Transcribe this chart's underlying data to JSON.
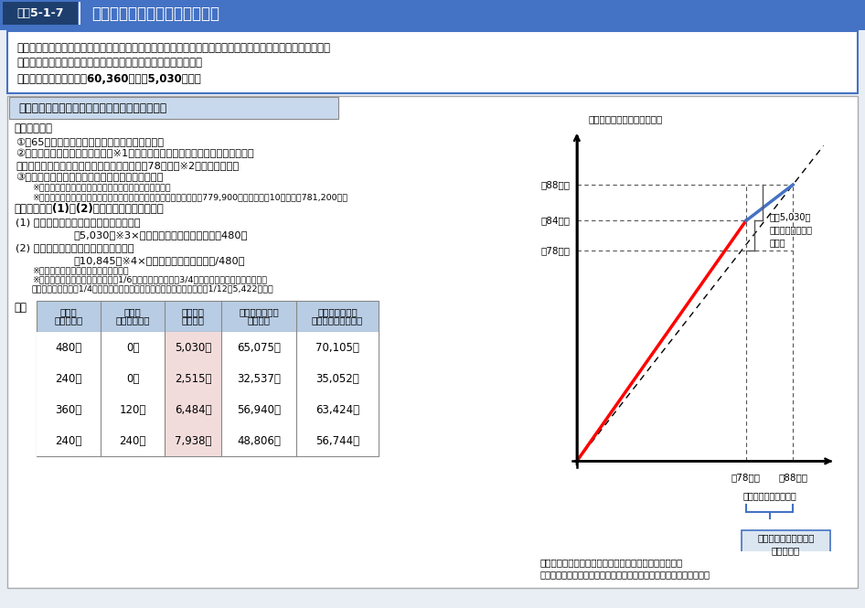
{
  "title_box_color": "#3a6ea5",
  "title_label": "図表5-1-7",
  "title_text": "年金生活者支援給付金について",
  "bg_color": "#e8eef4",
  "main_bg": "#ffffff",
  "header_blue": "#4472c4",
  "light_blue_bg": "#dce6f1",
  "subtitle_bg": "#c9d9ed",
  "table_header_bg": "#b8cce4",
  "table_pink": "#f2dcdb",
  "table_line_color": "#aaaaaa",
  "description_text_lines": [
    "年金生活者支援給付金は、年金を含めても所得が低い者（前年の所得額が老齢基礎年金満額以下の者など）の",
    "生活を支援するために、年金に上乗せして支給するものである。",
    "【令和３年度基準額　年60,360円（月5,030円）】"
  ],
  "section_title": "高齢者への給付金（老齢年金生活者支援給付金）",
  "requirements_title": "【支給要件】",
  "req1": "①　65歳以上の老齢基礎年金の受給者であること",
  "req2": "②　前年の公的年金等の収入金額※1とその他の所得（給与所得や利子所得など）",
  "req2b": "　　との合計額が、老齢基礎年金満額相当（約78万円）※2以下であること",
  "req3": "③　同一世帯の全員が市町村民税非課税であること",
  "note1": "※１　障害年金・遺族年金等の非課税収入は含まれない。",
  "note2": "※２　毎年度、老齢基礎年金の額を勘案して改定。令和３年９月までは779,900円。令和３年10月以降は781,200円。",
  "kyufu_title": "【給付額】　(1)と(2)の合計額が支給される。",
  "kyufu1_title": "(1) 保険料納付済期間に基づく額（月額）",
  "kyufu1_formula": "＝5,030円※3×保険料納付済期間（月数）／480月",
  "kyufu2_title": "(2) 保険料免除期間に基づく額（月額）",
  "kyufu2_formula": "＝10,845円※4×保険料免除期間（月数）/480月",
  "note3": "※３　毎年度、物価変動に応じて改定。",
  "note4": "※４　老齢基礎年金満額（月額）の1/6（保険料全額免除、3/4免除、半額免除期間の場合）。",
  "note4b": "　　ただし、保険料1/4免除期間の場合は、老齢基礎年金満額（月額）の1/12（5,422円）。",
  "example_label": "例：",
  "col_headers": [
    "保険料\n納付済期間",
    "保険料\n全額免除期間",
    "給付金額\n（月額）",
    "老齢基礎年金額\n（月額）",
    "老齢基礎年金額\n＋給付金額（月額）"
  ],
  "table_rows": [
    [
      "480月",
      "0月",
      "5,030円",
      "65,075円",
      "70,105円"
    ],
    [
      "240月",
      "0月",
      "2,515円",
      "32,537円",
      "35,052円"
    ],
    [
      "360月",
      "120月",
      "6,484円",
      "56,940円",
      "63,424円"
    ],
    [
      "240月",
      "240月",
      "7,938円",
      "48,806円",
      "56,744円"
    ]
  ],
  "graph_ylabel": "給付金上乗せ後の額（年額）",
  "graph_xlabel": "前年の公的年金等の収入金額とその他の所得との合計額",
  "graph_note": "（注）保険料納付済期間に基づく公的年金だけで生活している者の例",
  "graph_y_labels": [
    "約88万円",
    "約84万円",
    "約78万円"
  ],
  "graph_x_labels": [
    "約78万円",
    "約88万円"
  ],
  "graph_x_sub": "（老齢基礎年金満額）",
  "annotation1": "月額5,030円\n（年額約６万円）\nを支給",
  "annotation2": "補足的な給付（次頁）\nの支給範囲"
}
